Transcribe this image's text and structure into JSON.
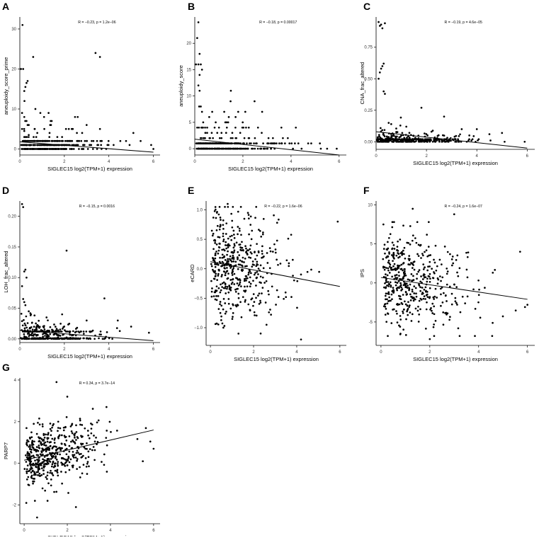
{
  "figure": {
    "xlabel": "SIGLEC15 log2(TPM+1) expression"
  },
  "chart_data": [
    {
      "panel": "A",
      "type": "scatter",
      "ylabel": "aneuploidy_score_prime",
      "stat": "R = −0.23, p = 1.2e−06",
      "xlim": [
        0,
        6.3
      ],
      "ylim": [
        -1.5,
        33
      ],
      "xticks": [
        0,
        2,
        4,
        6
      ],
      "yticks": [
        0,
        10,
        20,
        30
      ],
      "fit": {
        "x": [
          0,
          6
        ],
        "y": [
          1.8,
          -0.8
        ]
      },
      "seed": 11,
      "n": 380,
      "points": [
        [
          0.12,
          31
        ],
        [
          0.05,
          20
        ],
        [
          0.15,
          20
        ],
        [
          0.2,
          14.5
        ],
        [
          0.25,
          15.5
        ],
        [
          0.3,
          16.5
        ],
        [
          0.35,
          17
        ],
        [
          0.6,
          23
        ],
        [
          3.4,
          24
        ],
        [
          3.6,
          23
        ],
        [
          0.1,
          9
        ],
        [
          0.2,
          8
        ],
        [
          0.3,
          7
        ],
        [
          0.35,
          6
        ],
        [
          0.1,
          5
        ],
        [
          0.2,
          4.5
        ],
        [
          0.4,
          3.5
        ],
        [
          1.8,
          2
        ],
        [
          2.6,
          8
        ],
        [
          3.0,
          6
        ],
        [
          0.2,
          3
        ],
        [
          2.2,
          5
        ],
        [
          3.6,
          5
        ],
        [
          5.1,
          4
        ],
        [
          2.8,
          4
        ],
        [
          5.9,
          1
        ],
        [
          6.0,
          0
        ]
      ],
      "dist": "count",
      "base_frac": 0.75,
      "base_levels": [
        0,
        1,
        2
      ],
      "spread": 0
    },
    {
      "panel": "B",
      "type": "scatter",
      "ylabel": "aneuploidy_score",
      "stat": "R = −0.18, p = 0.00017",
      "xlim": [
        0,
        6.3
      ],
      "ylim": [
        -1.2,
        25
      ],
      "xticks": [
        0,
        2,
        4,
        6
      ],
      "yticks": [
        0,
        5,
        10,
        15,
        20
      ],
      "fit": {
        "x": [
          0,
          6
        ],
        "y": [
          1.8,
          -1.2
        ]
      },
      "seed": 22,
      "n": 360,
      "points": [
        [
          0.15,
          24
        ],
        [
          0.1,
          21
        ],
        [
          0.2,
          18
        ],
        [
          0.05,
          16
        ],
        [
          0.15,
          16
        ],
        [
          0.25,
          16
        ],
        [
          0.3,
          15
        ],
        [
          0.2,
          14
        ],
        [
          0.15,
          12
        ],
        [
          0.2,
          11
        ],
        [
          0.25,
          8
        ],
        [
          0.3,
          7
        ],
        [
          0.35,
          5
        ],
        [
          0.1,
          4
        ],
        [
          0.3,
          4
        ],
        [
          0.6,
          6
        ],
        [
          1.5,
          11
        ],
        [
          2.1,
          7
        ],
        [
          2.8,
          7
        ],
        [
          1.5,
          2
        ],
        [
          2.5,
          2
        ],
        [
          3.6,
          4
        ],
        [
          4.2,
          4
        ],
        [
          5.2,
          1
        ],
        [
          5.5,
          0
        ],
        [
          5.9,
          0
        ]
      ],
      "dist": "count",
      "base_frac": 0.8,
      "base_levels": [
        0,
        1
      ],
      "spread": 0
    },
    {
      "panel": "C",
      "type": "scatter",
      "ylabel": "CNA_frac_altered",
      "stat": "R = −0.19, p = 4.6e−05",
      "xlim": [
        0,
        6.3
      ],
      "ylim": [
        -0.06,
        0.99
      ],
      "xticks": [
        0,
        2,
        4,
        6
      ],
      "yticks": [
        0,
        0.25,
        0.5,
        0.75
      ],
      "ytick_labels": [
        "0.00",
        "0.25",
        "0.50",
        "0.75"
      ],
      "fit": {
        "x": [
          0,
          6
        ],
        "y": [
          0.08,
          -0.05
        ]
      },
      "seed": 33,
      "n": 380,
      "points": [
        [
          0.1,
          0.95
        ],
        [
          0.2,
          0.93
        ],
        [
          0.15,
          0.92
        ],
        [
          0.25,
          0.9
        ],
        [
          0.35,
          0.94
        ],
        [
          0.3,
          0.62
        ],
        [
          0.25,
          0.6
        ],
        [
          0.2,
          0.58
        ],
        [
          0.15,
          0.55
        ],
        [
          0.1,
          0.5
        ],
        [
          0.3,
          0.4
        ],
        [
          0.35,
          0.38
        ],
        [
          0.5,
          0.15
        ],
        [
          0.6,
          0.14
        ],
        [
          1.8,
          0.27
        ],
        [
          2.7,
          0.2
        ],
        [
          3.4,
          0.1
        ],
        [
          4.0,
          0.1
        ],
        [
          4.5,
          0.06
        ],
        [
          5.0,
          0.07
        ],
        [
          5.9,
          0.0
        ],
        [
          1.2,
          0.12
        ],
        [
          2.2,
          0.08
        ]
      ],
      "dist": "small",
      "base_frac": 0.65,
      "base_levels": [
        0,
        0.01,
        0.02
      ],
      "spread": 0.06
    },
    {
      "panel": "D",
      "type": "scatter",
      "ylabel": "LOH_frac_altered",
      "stat": "R = −0.15, p = 0.0016",
      "xlim": [
        0,
        6.3
      ],
      "ylim": [
        -0.006,
        0.225
      ],
      "xticks": [
        0,
        2,
        4,
        6
      ],
      "yticks": [
        0,
        0.05,
        0.1,
        0.15,
        0.2
      ],
      "ytick_labels": [
        "0.00",
        "0.05",
        "0.10",
        "0.15",
        "0.20"
      ],
      "fit": {
        "x": [
          0,
          6
        ],
        "y": [
          0.014,
          -0.003
        ]
      },
      "seed": 44,
      "n": 380,
      "points": [
        [
          0.1,
          0.22
        ],
        [
          0.15,
          0.215
        ],
        [
          0.2,
          0.11
        ],
        [
          0.25,
          0.113
        ],
        [
          0.3,
          0.1
        ],
        [
          0.1,
          0.086
        ],
        [
          0.15,
          0.065
        ],
        [
          0.2,
          0.06
        ],
        [
          0.25,
          0.055
        ],
        [
          2.1,
          0.144
        ],
        [
          3.8,
          0.066
        ],
        [
          0.5,
          0.04
        ],
        [
          1.2,
          0.035
        ],
        [
          3.0,
          0.03
        ],
        [
          4.4,
          0.03
        ],
        [
          5.0,
          0.02
        ],
        [
          5.8,
          0.01
        ],
        [
          0.4,
          0.045
        ],
        [
          1.9,
          0.04
        ]
      ],
      "dist": "small",
      "base_frac": 0.6,
      "base_levels": [
        0,
        0.001,
        0.012
      ],
      "spread": 0.02
    },
    {
      "panel": "E",
      "type": "scatter",
      "ylabel": "eCARD",
      "stat": "R = −0.22, p = 1.6e−06",
      "xlim": [
        -0.2,
        6.3
      ],
      "ylim": [
        -1.3,
        1.15
      ],
      "xticks": [
        0,
        2,
        4,
        6
      ],
      "yticks": [
        -1,
        -0.5,
        0,
        0.5,
        1
      ],
      "ytick_labels": [
        "−1.0",
        "−0.5",
        "0.0",
        "0.5",
        "1.0"
      ],
      "fit": {
        "x": [
          0,
          6
        ],
        "y": [
          0.12,
          -0.3
        ]
      },
      "seed": 55,
      "n": 480,
      "points": [
        [
          0.8,
          1.1
        ],
        [
          0.3,
          0.95
        ],
        [
          5.9,
          0.8
        ],
        [
          4.2,
          -1.2
        ],
        [
          1.3,
          -1.1
        ],
        [
          0.6,
          -1.0
        ],
        [
          2.6,
          -0.95
        ]
      ],
      "dist": "normal",
      "slope": -0.07,
      "intercept": 0.12,
      "sd": 0.42,
      "clip": [
        -1.15,
        1.05
      ]
    },
    {
      "panel": "F",
      "type": "scatter",
      "ylabel": "IPS",
      "stat": "R = −0.24, p = 1.6e−07",
      "xlim": [
        -0.2,
        6.3
      ],
      "ylim": [
        -8,
        10.5
      ],
      "xticks": [
        0,
        2,
        4,
        6
      ],
      "yticks": [
        -5,
        0,
        5,
        10
      ],
      "fit": {
        "x": [
          0,
          6
        ],
        "y": [
          0.7,
          -2.1
        ]
      },
      "seed": 66,
      "n": 480,
      "points": [
        [
          1.3,
          9.5
        ],
        [
          3.0,
          8.8
        ],
        [
          0.1,
          7.5
        ],
        [
          5.7,
          4.0
        ],
        [
          6.0,
          -2.8
        ],
        [
          2.0,
          -7.2
        ],
        [
          0.8,
          -6.5
        ]
      ],
      "dist": "normal",
      "slope": -0.45,
      "intercept": 0.7,
      "sd": 2.8,
      "clip": [
        -6.8,
        7.8
      ]
    },
    {
      "panel": "G",
      "type": "scatter",
      "ylabel": "PARP7",
      "stat": "R = 0.34, p = 3.7e−14",
      "xlim": [
        -0.2,
        6.3
      ],
      "ylim": [
        -2.9,
        4.1
      ],
      "xticks": [
        0,
        2,
        4,
        6
      ],
      "yticks": [
        -2,
        0,
        2,
        4
      ],
      "fit": {
        "x": [
          0,
          6
        ],
        "y": [
          0.15,
          1.6
        ]
      },
      "seed": 77,
      "n": 480,
      "points": [
        [
          1.5,
          3.9
        ],
        [
          2.0,
          3.2
        ],
        [
          2.4,
          -2.1
        ],
        [
          0.6,
          -2.6
        ],
        [
          0.1,
          -1.9
        ],
        [
          5.5,
          0.1
        ],
        [
          6.0,
          0.7
        ]
      ],
      "dist": "normal",
      "slope": 0.24,
      "intercept": 0.15,
      "sd": 0.72,
      "clip": [
        -1.8,
        3.0
      ]
    }
  ]
}
